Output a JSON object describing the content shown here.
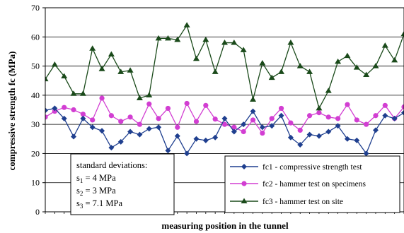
{
  "chart_data": {
    "type": "line",
    "title": "",
    "xlabel": "measuring position in the tunnel",
    "ylabel": "compressive strength fc (MPa)",
    "ylim": [
      0,
      70
    ],
    "yticks": [
      0,
      10,
      20,
      30,
      40,
      50,
      60,
      70
    ],
    "grid": "horizontal",
    "legend_position": "bottom-right",
    "n_points": 39,
    "series": [
      {
        "name": "fc1 - compressive strength test",
        "color": "#1f3f8f",
        "marker": "diamond",
        "values": [
          34.8,
          35.5,
          32.0,
          25.8,
          32.0,
          29.0,
          27.8,
          22.0,
          24.0,
          27.5,
          26.5,
          28.5,
          29.0,
          21.0,
          26.0,
          20.0,
          25.0,
          24.5,
          25.5,
          32.0,
          27.5,
          30.0,
          34.5,
          29.0,
          29.5,
          33.0,
          25.5,
          23.0,
          26.5,
          26.0,
          27.5,
          29.5,
          25.0,
          24.5,
          20.0,
          28.0,
          33.0,
          32.0,
          34.0
        ]
      },
      {
        "name": "fc2 - hammer test on specimens",
        "color": "#d23ed2",
        "marker": "circle",
        "values": [
          32.5,
          34.5,
          35.8,
          35.0,
          33.5,
          31.5,
          39.0,
          33.0,
          31.0,
          32.5,
          30.0,
          37.0,
          32.0,
          35.5,
          29.0,
          37.2,
          31.0,
          36.5,
          31.8,
          30.0,
          29.0,
          27.5,
          31.5,
          27.0,
          32.0,
          35.5,
          30.5,
          28.0,
          33.0,
          34.0,
          32.5,
          32.0,
          36.8,
          31.5,
          30.0,
          33.0,
          36.5,
          32.0,
          36.0
        ]
      },
      {
        "name": "fc3 - hammer test on site",
        "color": "#1a4a1a",
        "marker": "triangle",
        "values": [
          45.5,
          50.5,
          46.5,
          40.5,
          40.5,
          56.0,
          49.0,
          54.0,
          48.0,
          48.5,
          39.0,
          40.0,
          59.5,
          59.5,
          59.0,
          64.0,
          52.5,
          59.0,
          48.0,
          58.0,
          58.0,
          55.5,
          38.5,
          51.0,
          46.0,
          48.0,
          58.0,
          50.0,
          48.0,
          35.5,
          41.5,
          51.5,
          53.5,
          49.5,
          47.0,
          50.0,
          57.0,
          52.0,
          61.0
        ]
      }
    ],
    "annotation": {
      "heading": "standard deviations:",
      "lines": [
        {
          "sym": "s",
          "sub": "1",
          "rest": " = 4 MPa"
        },
        {
          "sym": "s",
          "sub": "2",
          "rest": " = 3 MPa"
        },
        {
          "sym": "s",
          "sub": "3",
          "rest": " = 7.1 MPa"
        }
      ]
    }
  }
}
